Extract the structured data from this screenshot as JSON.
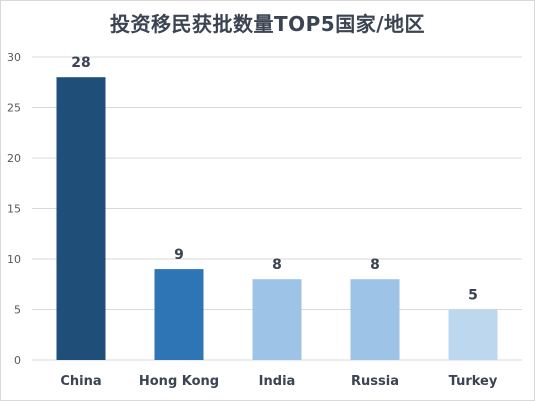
{
  "chart_data": {
    "type": "bar",
    "title": "投资移民获批数量TOP5国家/地区",
    "categories": [
      "China",
      "Hong Kong",
      "India",
      "Russia",
      "Turkey"
    ],
    "values": [
      28,
      9,
      8,
      8,
      5
    ],
    "bar_colors": [
      "#1f4e79",
      "#2e75b6",
      "#9dc3e6",
      "#9dc3e6",
      "#bdd7ee"
    ],
    "ylim": [
      0,
      30
    ],
    "yticks": [
      0,
      5,
      10,
      15,
      20,
      25,
      30
    ],
    "grid": true,
    "legend": "none",
    "data_labels": true
  },
  "colors": {
    "grid": "#d9d9d9",
    "text": "#3b4452",
    "axis_text": "#595959"
  }
}
